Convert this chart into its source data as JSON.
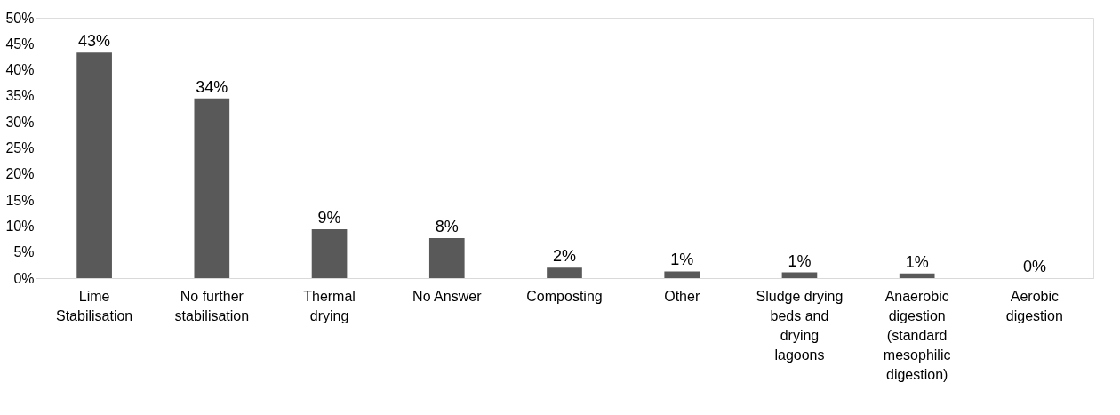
{
  "chart_data": {
    "type": "bar",
    "categories": [
      "Lime\nStabilisation",
      "No further\nstabilisation",
      "Thermal\ndrying",
      "No Answer",
      "Composting",
      "Other",
      "Sludge drying\nbeds and\ndrying\nlagoons",
      "Anaerobic\ndigestion\n(standard\nmesophilic\ndigestion)",
      "Aerobic\ndigestion"
    ],
    "values": [
      43.3,
      34.5,
      9.4,
      7.7,
      2.0,
      1.3,
      1.1,
      0.9,
      0
    ],
    "value_labels": [
      "43%",
      "34%",
      "9%",
      "8%",
      "2%",
      "1%",
      "1%",
      "1%",
      "0%"
    ],
    "color": "#595959",
    "ylim": [
      0,
      50
    ],
    "yticks": [
      {
        "value": 0,
        "label": "0%"
      },
      {
        "value": 5,
        "label": "5%"
      },
      {
        "value": 10,
        "label": "10%"
      },
      {
        "value": 15,
        "label": "15%"
      },
      {
        "value": 20,
        "label": "20%"
      },
      {
        "value": 25,
        "label": "25%"
      },
      {
        "value": 30,
        "label": "30%"
      },
      {
        "value": 35,
        "label": "35%"
      },
      {
        "value": 40,
        "label": "40%"
      },
      {
        "value": 45,
        "label": "45%"
      },
      {
        "value": 50,
        "label": "50%"
      }
    ],
    "grid": false
  }
}
